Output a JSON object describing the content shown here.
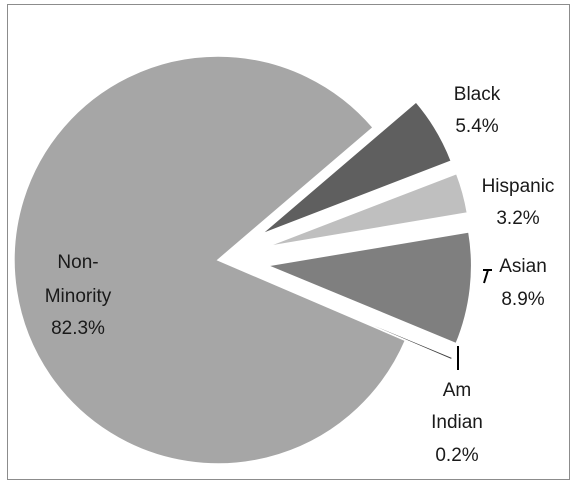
{
  "chart_data": {
    "type": "pie",
    "title": "",
    "slices": [
      {
        "name": "Non-Minority",
        "label_lines": [
          "Non-",
          "Minority"
        ],
        "percent_label": "82.3%",
        "value": 82.3,
        "color": "#a6a6a6"
      },
      {
        "name": "Black",
        "label_lines": [
          "Black"
        ],
        "percent_label": "5.4%",
        "value": 5.4,
        "color": "#5f5f5f"
      },
      {
        "name": "Hispanic",
        "label_lines": [
          "Hispanic"
        ],
        "percent_label": "3.2%",
        "value": 3.2,
        "color": "#bfbfbf"
      },
      {
        "name": "Asian",
        "label_lines": [
          "Asian"
        ],
        "percent_label": "8.9%",
        "value": 8.9,
        "color": "#7f7f7f"
      },
      {
        "name": "Am Indian",
        "label_lines": [
          "Am",
          "Indian"
        ],
        "percent_label": "0.2%",
        "value": 0.2,
        "color": "#404040"
      }
    ],
    "legend": "none",
    "data_labels": "category-and-percent"
  }
}
